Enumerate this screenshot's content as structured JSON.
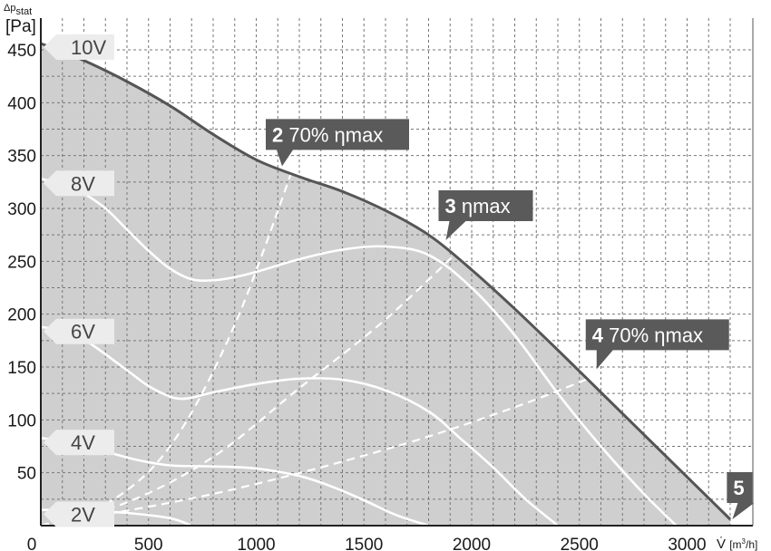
{
  "chart_data": {
    "type": "line",
    "title": "",
    "ylabel_top": "Δp",
    "ylabel_sub": "stat",
    "yunit": "[Pa]",
    "xlabel_symbol": "V̇",
    "xlabel_unit_open": "[m",
    "xlabel_unit_sup": "3",
    "xlabel_unit_close": "/h]",
    "xlim": [
      0,
      3300
    ],
    "ylim": [
      0,
      470
    ],
    "grid": true,
    "x_ticks": [
      0,
      500,
      1000,
      1500,
      2000,
      2500,
      3000
    ],
    "y_ticks": [
      50,
      100,
      150,
      200,
      250,
      300,
      350,
      400,
      450
    ],
    "colors": {
      "fill": "#cfcfcf",
      "max_curve": "#555555",
      "voltage_curves": "#ffffff",
      "efficiency_lines": "#ffffff",
      "label_box": "#5a5a5a",
      "voltage_tag": "#ececec"
    },
    "series": [
      {
        "name": "10V",
        "x": [
          0,
          200,
          400,
          600,
          800,
          1000,
          1200,
          1400,
          1600,
          1800,
          2000,
          2200,
          2400,
          2600,
          2800,
          3000,
          3200
        ],
        "y": [
          456,
          440,
          420,
          397,
          370,
          346,
          330,
          316,
          298,
          275,
          242,
          205,
          166,
          126,
          86,
          46,
          6
        ]
      },
      {
        "name": "8V",
        "x": [
          0,
          100,
          200,
          300,
          400,
          500,
          600,
          700,
          800,
          900,
          1000,
          1200,
          1400,
          1600,
          1800,
          2000,
          2200,
          2400,
          2600,
          2800,
          2950
        ],
        "y": [
          328,
          323,
          314,
          300,
          280,
          260,
          243,
          233,
          232,
          235,
          240,
          252,
          261,
          264,
          256,
          225,
          180,
          125,
          75,
          30,
          0
        ]
      },
      {
        "name": "6V",
        "x": [
          0,
          100,
          200,
          300,
          400,
          500,
          600,
          650,
          700,
          800,
          1000,
          1200,
          1400,
          1600,
          1800,
          1950,
          2100,
          2250,
          2400
        ],
        "y": [
          188,
          184,
          176,
          162,
          147,
          132,
          122,
          120,
          121,
          126,
          134,
          139,
          138,
          128,
          108,
          82,
          55,
          25,
          0
        ]
      },
      {
        "name": "4V",
        "x": [
          0,
          150,
          300,
          450,
          600,
          800,
          1000,
          1200,
          1350,
          1500,
          1650,
          1800
        ],
        "y": [
          83,
          78,
          70,
          62,
          57,
          56,
          54,
          47,
          37,
          24,
          10,
          0
        ]
      },
      {
        "name": "2V",
        "x": [
          0,
          200,
          400,
          600,
          700
        ],
        "y": [
          15,
          14,
          12,
          7,
          0
        ]
      }
    ],
    "efficiency_lines": [
      {
        "name": "2 70% ηmax",
        "x": [
          0,
          300,
          600,
          900,
          1200
        ],
        "y": [
          0,
          20,
          75,
          190,
          355
        ]
      },
      {
        "name": "3 ηmax",
        "x": [
          0,
          400,
          800,
          1200,
          1600,
          1950
        ],
        "y": [
          0,
          22,
          65,
          130,
          195,
          262
        ]
      },
      {
        "name": "4 70% ηmax",
        "x": [
          0,
          800,
          1600,
          2200,
          2650
        ],
        "y": [
          0,
          30,
          72,
          112,
          148
        ]
      }
    ],
    "voltage_tags": [
      "10V",
      "8V",
      "6V",
      "4V",
      "2V"
    ],
    "point_labels": [
      {
        "number": "2",
        "text": "70% ηmax",
        "x": 1120,
        "y": 340
      },
      {
        "number": "3",
        "text": "ηmax",
        "x": 1880,
        "y": 270
      },
      {
        "number": "4",
        "text": "70% ηmax",
        "x": 2580,
        "y": 148
      },
      {
        "number": "5",
        "text": "",
        "x": 3210,
        "y": 6
      }
    ]
  }
}
